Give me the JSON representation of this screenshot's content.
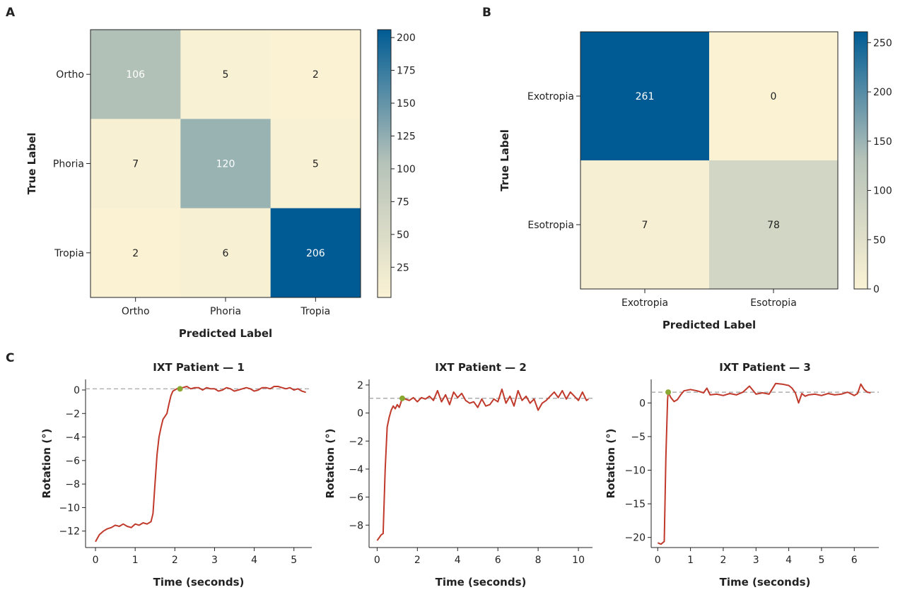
{
  "panel_labels": [
    "A",
    "B",
    "C"
  ],
  "colors": {
    "low": "#fbf2d4",
    "mid": "#b6c3b9",
    "high": "#005b94",
    "trace": "#c0392b",
    "marker": "#8aa832",
    "dash": "#9e9e9e"
  },
  "chart_data": [
    {
      "id": "A",
      "type": "heatmap",
      "title": "",
      "xlabel": "Predicted Label",
      "ylabel": "True Label",
      "x_categories": [
        "Ortho",
        "Phoria",
        "Tropia"
      ],
      "y_categories": [
        "Ortho",
        "Phoria",
        "Tropia"
      ],
      "values": [
        [
          106,
          5,
          2
        ],
        [
          7,
          120,
          5
        ],
        [
          2,
          6,
          206
        ]
      ],
      "colorbar": {
        "min": 2,
        "max": 206,
        "ticks": [
          25,
          50,
          75,
          100,
          125,
          150,
          175,
          200
        ]
      }
    },
    {
      "id": "B",
      "type": "heatmap",
      "title": "",
      "xlabel": "Predicted Label",
      "ylabel": "True Label",
      "x_categories": [
        "Exotropia",
        "Esotropia"
      ],
      "y_categories": [
        "Exotropia",
        "Esotropia"
      ],
      "values": [
        [
          261,
          0
        ],
        [
          7,
          78
        ]
      ],
      "colorbar": {
        "min": 0,
        "max": 261,
        "ticks": [
          0,
          50,
          100,
          150,
          200,
          250
        ]
      }
    },
    {
      "id": "C1",
      "type": "line",
      "title": "IXT Patient — 1",
      "xlabel": "Time (seconds)",
      "ylabel": "Rotation (°)",
      "xlim": [
        -0.25,
        5.45
      ],
      "ylim": [
        -13.4,
        0.9
      ],
      "xticks": [
        0,
        1,
        2,
        3,
        4,
        5
      ],
      "yticks": [
        -12,
        -10,
        -8,
        -6,
        -4,
        -2,
        0
      ],
      "reference_y": 0.1,
      "marker": {
        "x": 2.13,
        "y": 0.1
      },
      "series": [
        {
          "name": "Rotation",
          "x": [
            0,
            0.05,
            0.1,
            0.2,
            0.3,
            0.4,
            0.5,
            0.6,
            0.7,
            0.8,
            0.9,
            1.0,
            1.1,
            1.2,
            1.3,
            1.4,
            1.45,
            1.5,
            1.55,
            1.6,
            1.65,
            1.7,
            1.8,
            1.85,
            1.9,
            1.95,
            2.0,
            2.05,
            2.13,
            2.2,
            2.3,
            2.4,
            2.5,
            2.6,
            2.7,
            2.8,
            2.9,
            3.0,
            3.1,
            3.2,
            3.3,
            3.4,
            3.5,
            3.6,
            3.7,
            3.8,
            3.9,
            4.0,
            4.1,
            4.2,
            4.3,
            4.4,
            4.5,
            4.6,
            4.7,
            4.8,
            4.9,
            5.0,
            5.1,
            5.2,
            5.3
          ],
          "y": [
            -12.9,
            -12.6,
            -12.3,
            -12.0,
            -11.8,
            -11.7,
            -11.5,
            -11.6,
            -11.4,
            -11.6,
            -11.7,
            -11.4,
            -11.5,
            -11.3,
            -11.4,
            -11.2,
            -10.5,
            -8.0,
            -5.5,
            -4.0,
            -3.2,
            -2.5,
            -2.0,
            -1.2,
            -0.5,
            -0.1,
            0.0,
            0.1,
            0.1,
            0.2,
            0.3,
            0.1,
            0.2,
            0.2,
            0.0,
            0.2,
            0.1,
            0.1,
            -0.1,
            0.0,
            0.2,
            0.1,
            -0.1,
            0.0,
            0.1,
            0.2,
            0.1,
            -0.1,
            0.0,
            0.2,
            0.2,
            0.1,
            0.3,
            0.3,
            0.2,
            0.1,
            0.2,
            0.0,
            0.1,
            -0.1,
            -0.2
          ]
        }
      ]
    },
    {
      "id": "C2",
      "type": "line",
      "title": "IXT Patient — 2",
      "xlabel": "Time (seconds)",
      "ylabel": "Rotation (°)",
      "xlim": [
        -0.4,
        10.7
      ],
      "ylim": [
        -9.6,
        2.4
      ],
      "xticks": [
        0,
        2,
        4,
        6,
        8,
        10
      ],
      "yticks": [
        -8,
        -6,
        -4,
        -2,
        0,
        2
      ],
      "reference_y": 1.05,
      "marker": {
        "x": 1.25,
        "y": 1.05
      },
      "series": [
        {
          "name": "Rotation",
          "x": [
            0,
            0.2,
            0.3,
            0.4,
            0.5,
            0.6,
            0.7,
            0.8,
            0.9,
            1.0,
            1.1,
            1.25,
            1.4,
            1.6,
            1.8,
            2.0,
            2.2,
            2.4,
            2.6,
            2.8,
            3.0,
            3.2,
            3.4,
            3.6,
            3.8,
            4.0,
            4.2,
            4.4,
            4.6,
            4.8,
            5.0,
            5.2,
            5.4,
            5.6,
            5.8,
            6.0,
            6.2,
            6.4,
            6.6,
            6.8,
            7.0,
            7.2,
            7.4,
            7.6,
            7.8,
            8.0,
            8.2,
            8.4,
            8.6,
            8.8,
            9.0,
            9.2,
            9.4,
            9.6,
            9.8,
            10.0,
            10.2,
            10.4,
            10.5
          ],
          "y": [
            -9.1,
            -8.7,
            -8.6,
            -4.0,
            -1.0,
            -0.3,
            0.2,
            0.5,
            0.3,
            0.6,
            0.4,
            1.05,
            1.0,
            0.9,
            1.1,
            0.8,
            1.1,
            1.0,
            1.2,
            0.9,
            1.6,
            0.8,
            1.3,
            0.6,
            1.5,
            1.1,
            1.4,
            0.9,
            0.7,
            0.8,
            0.4,
            1.0,
            0.5,
            0.6,
            1.0,
            0.8,
            1.7,
            0.7,
            1.2,
            0.5,
            1.6,
            0.9,
            1.2,
            0.7,
            1.0,
            0.2,
            0.7,
            0.9,
            1.2,
            1.5,
            1.1,
            1.6,
            1.0,
            1.5,
            1.2,
            0.9,
            1.5,
            0.9,
            1.0
          ]
        }
      ]
    },
    {
      "id": "C3",
      "type": "line",
      "title": "IXT Patient — 3",
      "xlabel": "Time (seconds)",
      "ylabel": "Rotation (°)",
      "xlim": [
        -0.2,
        6.75
      ],
      "ylim": [
        -21.5,
        3.5
      ],
      "xticks": [
        0,
        1,
        2,
        3,
        4,
        5,
        6
      ],
      "yticks": [
        -20,
        -15,
        -10,
        -5,
        0
      ],
      "reference_y": 1.6,
      "marker": {
        "x": 0.32,
        "y": 1.6
      },
      "series": [
        {
          "name": "Rotation",
          "x": [
            0,
            0.1,
            0.2,
            0.25,
            0.3,
            0.32,
            0.4,
            0.5,
            0.6,
            0.7,
            0.8,
            1.0,
            1.2,
            1.4,
            1.5,
            1.6,
            1.8,
            2.0,
            2.2,
            2.4,
            2.6,
            2.8,
            3.0,
            3.2,
            3.4,
            3.6,
            3.8,
            4.0,
            4.1,
            4.2,
            4.3,
            4.4,
            4.5,
            4.6,
            4.8,
            5.0,
            5.2,
            5.4,
            5.6,
            5.8,
            6.0,
            6.1,
            6.2,
            6.3,
            6.4,
            6.5
          ],
          "y": [
            -20.8,
            -21.0,
            -20.6,
            -8.0,
            0.5,
            1.6,
            0.8,
            0.2,
            0.5,
            1.2,
            1.8,
            2.0,
            1.8,
            1.5,
            2.2,
            1.2,
            1.3,
            1.1,
            1.4,
            1.2,
            1.6,
            2.5,
            1.3,
            1.5,
            1.3,
            2.9,
            2.8,
            2.6,
            2.2,
            1.5,
            0.0,
            1.4,
            1.0,
            1.2,
            1.3,
            1.1,
            1.4,
            1.2,
            1.3,
            1.6,
            1.1,
            1.4,
            2.8,
            2.0,
            1.6,
            1.5
          ]
        }
      ]
    }
  ]
}
